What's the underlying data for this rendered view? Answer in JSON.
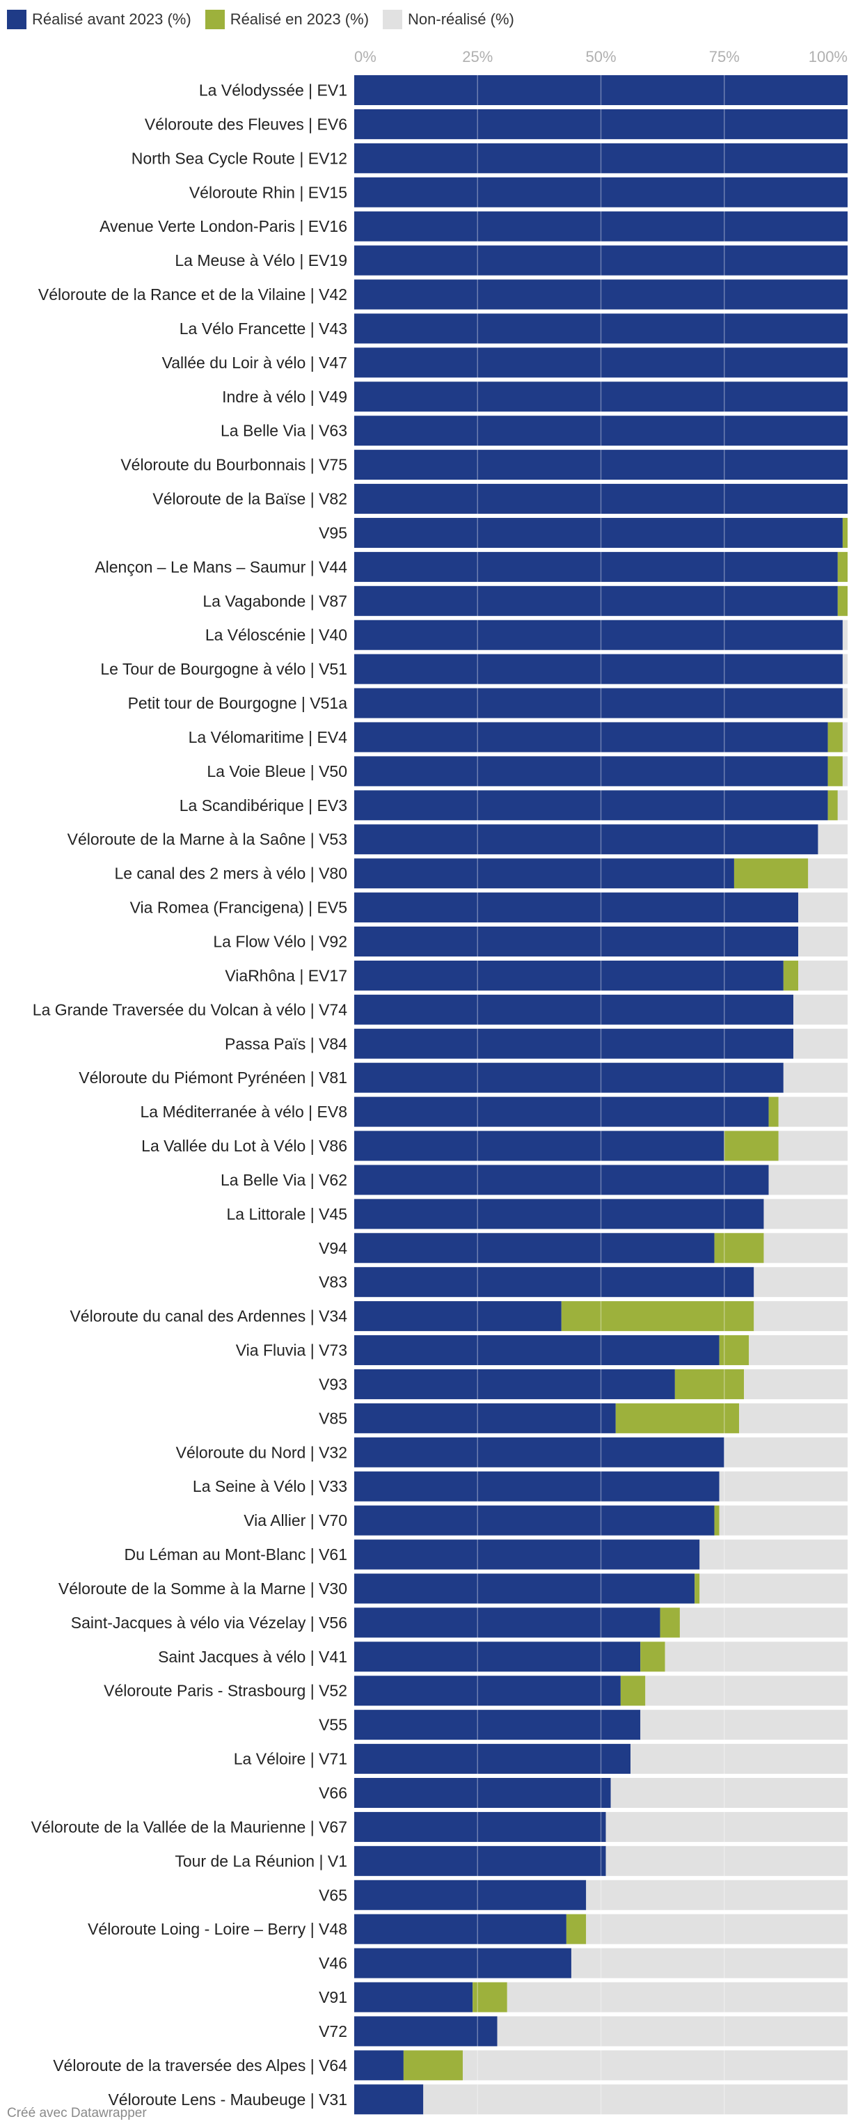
{
  "legend": [
    {
      "label": "Réalisé avant 2023 (%)",
      "color": "#1f3b87"
    },
    {
      "label": "Réalisé en 2023 (%)",
      "color": "#9db13c"
    },
    {
      "label": "Non-réalisé (%)",
      "color": "#e1e1e1"
    }
  ],
  "footer": {
    "credit": "Créé avec Datawrapper"
  },
  "chart_data": {
    "type": "bar",
    "orientation": "horizontal",
    "stacked": true,
    "title": "",
    "xlabel": "",
    "ylabel": "",
    "xlim": [
      0,
      100
    ],
    "ticks": [
      "0%",
      "25%",
      "50%",
      "75%",
      "100%"
    ],
    "tick_values": [
      0,
      25,
      50,
      75,
      100
    ],
    "grid": true,
    "legend_position": "top-left",
    "categories": [
      "La Vélodyssée | EV1",
      "Véloroute des Fleuves | EV6",
      "North Sea Cycle Route | EV12",
      "Véloroute Rhin | EV15",
      "Avenue Verte London-Paris | EV16",
      "La Meuse à Vélo | EV19",
      "Véloroute de la Rance et de la Vilaine | V42",
      "La Vélo Francette | V43",
      "Vallée du Loir à vélo | V47",
      "Indre à vélo | V49",
      "La Belle Via | V63",
      "Véloroute du Bourbonnais | V75",
      "Véloroute de la Baïse | V82",
      "V95",
      "Alençon – Le Mans – Saumur | V44",
      "La Vagabonde | V87",
      "La Véloscénie | V40",
      "Le Tour de Bourgogne à vélo | V51",
      "Petit tour de Bourgogne | V51a",
      "La Vélomaritime | EV4",
      "La Voie Bleue | V50",
      "La Scandibérique | EV3",
      "Véloroute de la Marne à la Saône | V53",
      "Le canal des 2 mers à vélo | V80",
      "Via Romea (Francigena) | EV5",
      "La Flow Vélo | V92",
      "ViaRhôna | EV17",
      "La Grande Traversée du Volcan à vélo | V74",
      "Passa Païs | V84",
      "Véloroute du Piémont Pyrénéen | V81",
      "La Méditerranée à vélo | EV8",
      "La Vallée du Lot à Vélo | V86",
      "La Belle Via | V62",
      "La Littorale | V45",
      "V94",
      "V83",
      "Véloroute du canal des Ardennes | V34",
      "Via Fluvia | V73",
      "V93",
      "V85",
      "Véloroute du Nord | V32",
      "La Seine à Vélo | V33",
      "Via Allier | V70",
      "Du Léman au Mont-Blanc | V61",
      "Véloroute de la Somme à la Marne | V30",
      "Saint-Jacques à vélo via Vézelay | V56",
      "Saint Jacques à vélo | V41",
      "Véloroute Paris - Strasbourg | V52",
      "V55",
      "La Véloire | V71",
      "V66",
      "Véloroute de la Vallée de la Maurienne | V67",
      "Tour de La Réunion | V1",
      "V65",
      "Véloroute Loing - Loire – Berry | V48",
      "V46",
      "V91",
      "V72",
      "Véloroute de la traversée des Alpes | V64",
      "Véloroute Lens - Maubeuge | V31"
    ],
    "series": [
      {
        "name": "Réalisé avant 2023 (%)",
        "color": "#1f3b87",
        "values": [
          100,
          100,
          100,
          100,
          100,
          100,
          100,
          100,
          100,
          100,
          100,
          100,
          100,
          99,
          98,
          98,
          99,
          99,
          99,
          96,
          96,
          96,
          94,
          77,
          90,
          90,
          87,
          89,
          89,
          87,
          84,
          75,
          84,
          83,
          73,
          81,
          42,
          74,
          65,
          53,
          75,
          74,
          73,
          70,
          69,
          62,
          58,
          54,
          58,
          56,
          52,
          51,
          51,
          47,
          43,
          44,
          24,
          29,
          10,
          14
        ]
      },
      {
        "name": "Réalisé en 2023 (%)",
        "color": "#9db13c",
        "values": [
          0,
          0,
          0,
          0,
          0,
          0,
          0,
          0,
          0,
          0,
          0,
          0,
          0,
          1,
          2,
          2,
          0,
          0,
          0,
          3,
          3,
          2,
          0,
          15,
          0,
          0,
          3,
          0,
          0,
          0,
          2,
          11,
          0,
          0,
          10,
          0,
          39,
          6,
          14,
          25,
          0,
          0,
          1,
          0,
          1,
          4,
          5,
          5,
          0,
          0,
          0,
          0,
          0,
          0,
          4,
          0,
          7,
          0,
          12,
          0
        ]
      },
      {
        "name": "Non-réalisé (%)",
        "color": "#e1e1e1",
        "values": [
          0,
          0,
          0,
          0,
          0,
          0,
          0,
          0,
          0,
          0,
          0,
          0,
          0,
          0,
          0,
          0,
          1,
          1,
          1,
          1,
          1,
          2,
          6,
          8,
          10,
          10,
          10,
          11,
          11,
          13,
          14,
          14,
          16,
          17,
          17,
          19,
          19,
          20,
          21,
          22,
          25,
          26,
          26,
          30,
          30,
          34,
          37,
          41,
          42,
          44,
          48,
          49,
          49,
          53,
          53,
          56,
          69,
          71,
          78,
          86
        ]
      }
    ]
  }
}
